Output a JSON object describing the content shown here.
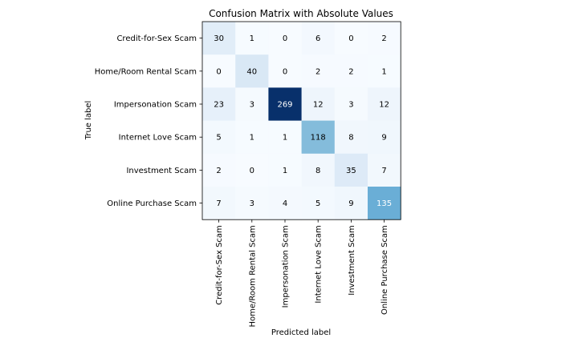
{
  "chart_data": {
    "type": "heatmap",
    "title": "Confusion Matrix with Absolute Values",
    "xlabel": "Predicted label",
    "ylabel": "True label",
    "x_categories": [
      "Credit-for-Sex Scam",
      "Home/Room Rental Scam",
      "Impersonation Scam",
      "Internet Love Scam",
      "Investment Scam",
      "Online Purchase Scam"
    ],
    "y_categories": [
      "Credit-for-Sex Scam",
      "Home/Room Rental Scam",
      "Impersonation Scam",
      "Internet Love Scam",
      "Investment Scam",
      "Online Purchase Scam"
    ],
    "values": [
      [
        30,
        1,
        0,
        6,
        0,
        2
      ],
      [
        0,
        40,
        0,
        2,
        2,
        1
      ],
      [
        23,
        3,
        269,
        12,
        3,
        12
      ],
      [
        5,
        1,
        1,
        118,
        8,
        9
      ],
      [
        2,
        0,
        1,
        8,
        35,
        7
      ],
      [
        7,
        3,
        4,
        5,
        9,
        135
      ]
    ],
    "colormap": "Blues",
    "value_range": [
      0,
      269
    ],
    "grid": false
  }
}
